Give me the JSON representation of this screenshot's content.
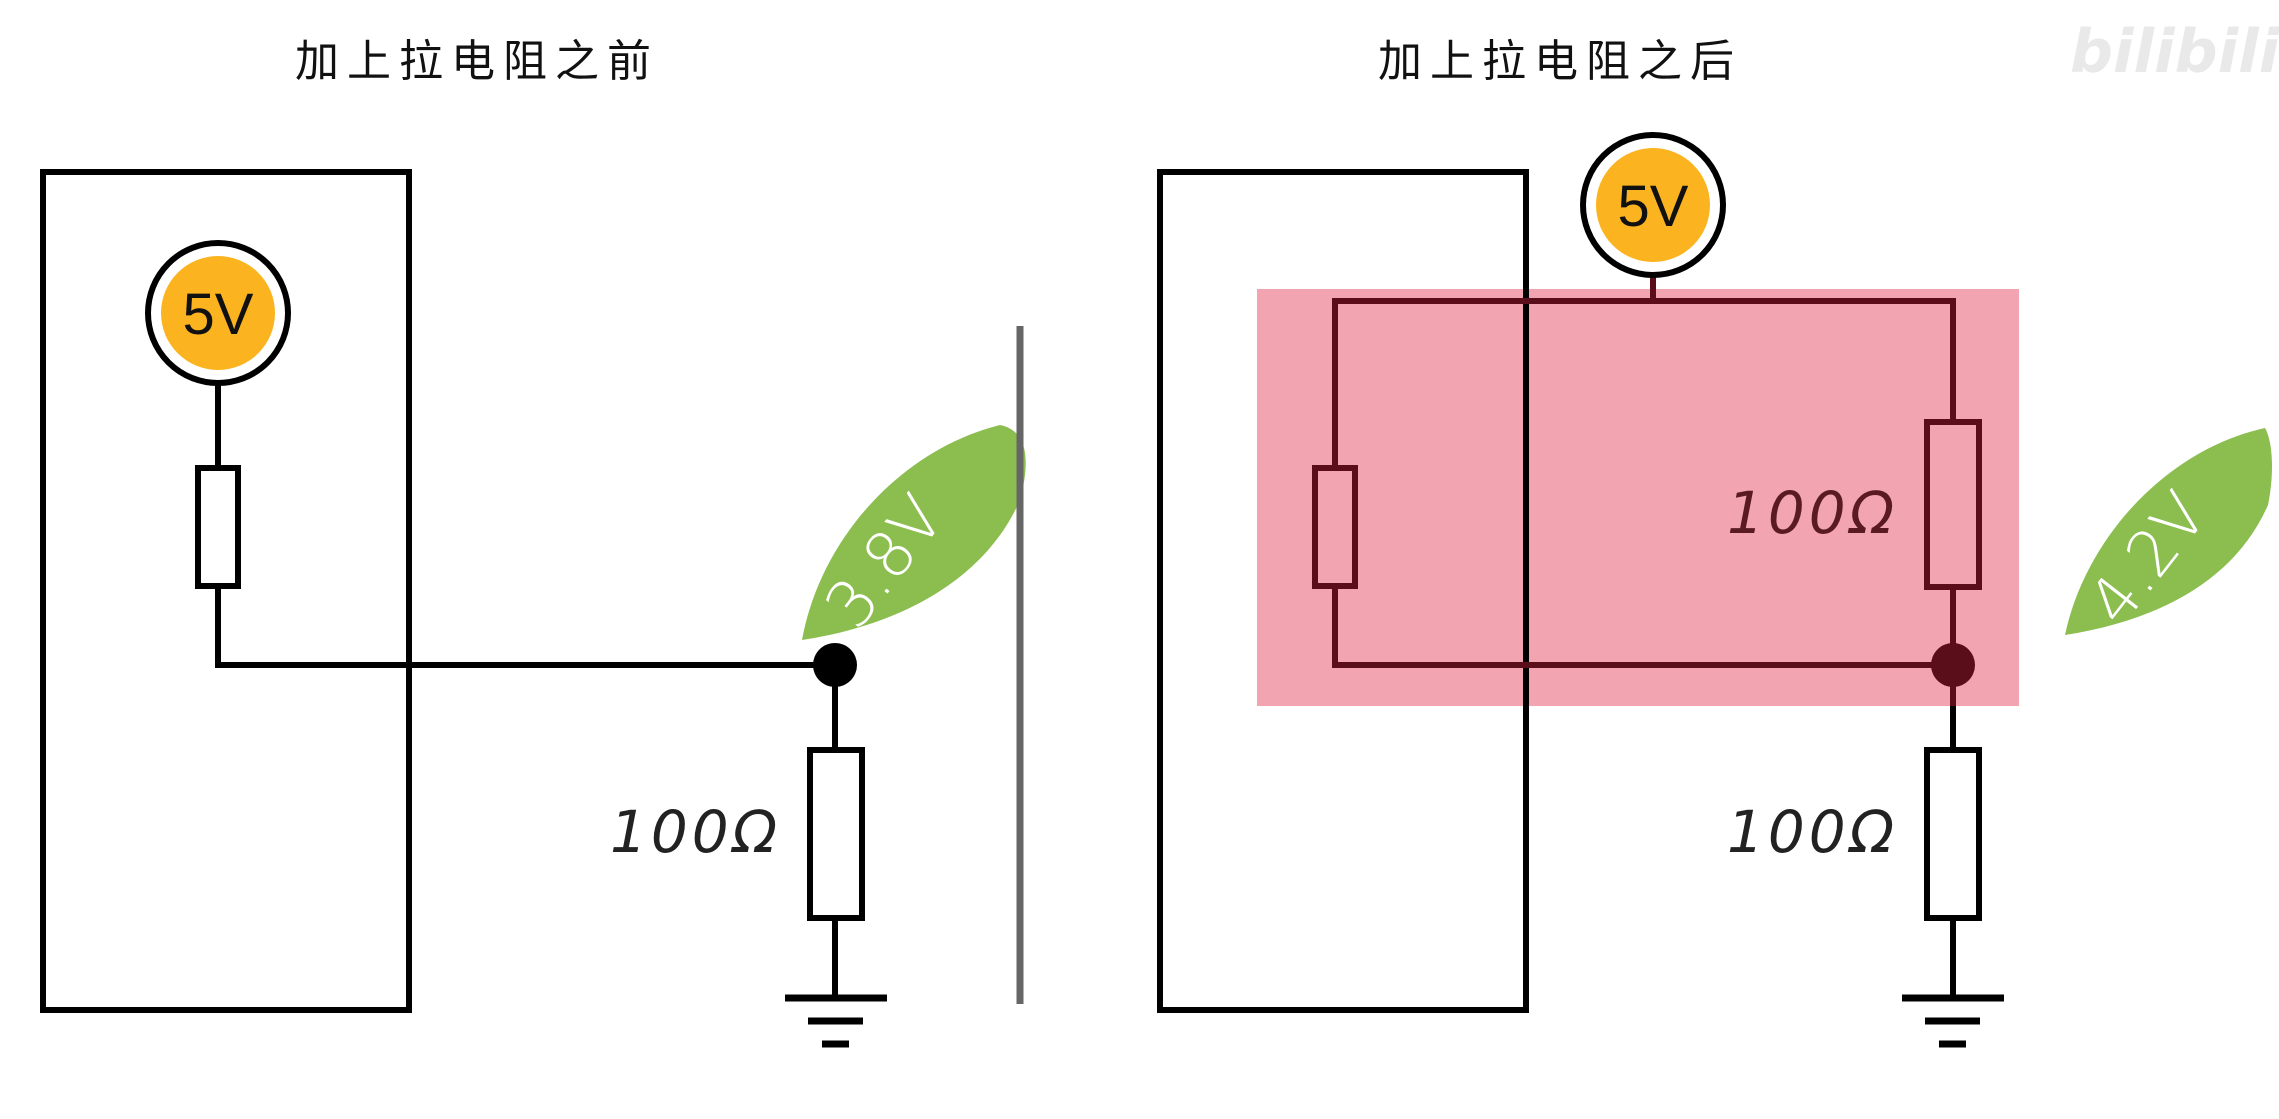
{
  "left_panel": {
    "title": "加上拉电阻之前",
    "source_label": "5V",
    "resistor_label": "100Ω",
    "voltage_reading": "3.8V"
  },
  "right_panel": {
    "title": "加上拉电阻之后",
    "source_label": "5V",
    "pullup_resistor_label": "100Ω",
    "resistor_label": "100Ω",
    "voltage_reading": "4.2V"
  },
  "watermark": {
    "text": "bilibili"
  },
  "colors": {
    "source_fill": "#fbb41f",
    "leaf_green": "#8bbd4f",
    "highlight_pink": "#f2a4b1",
    "dark_wire": "#5a0e1a",
    "wire": "#000000",
    "divider": "#666666"
  }
}
